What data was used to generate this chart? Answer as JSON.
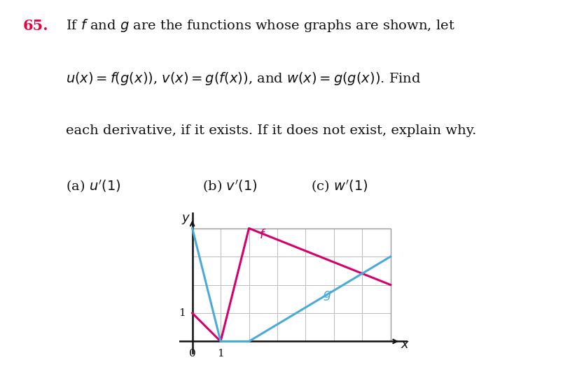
{
  "f_color": "#d4006e",
  "g_color": "#4aabda",
  "f_points": [
    [
      0,
      1
    ],
    [
      1,
      0
    ],
    [
      2,
      4
    ],
    [
      7,
      2
    ]
  ],
  "g_points": [
    [
      0,
      4
    ],
    [
      1,
      0
    ],
    [
      2,
      0
    ],
    [
      7,
      3
    ]
  ],
  "xmax": 7,
  "ymax": 4,
  "background_color": "#ffffff",
  "grid_color": "#bbbbbb",
  "axis_color": "#111111",
  "number_65_color": "#e8003f",
  "text_color": "#111111",
  "box_color": "#999999"
}
